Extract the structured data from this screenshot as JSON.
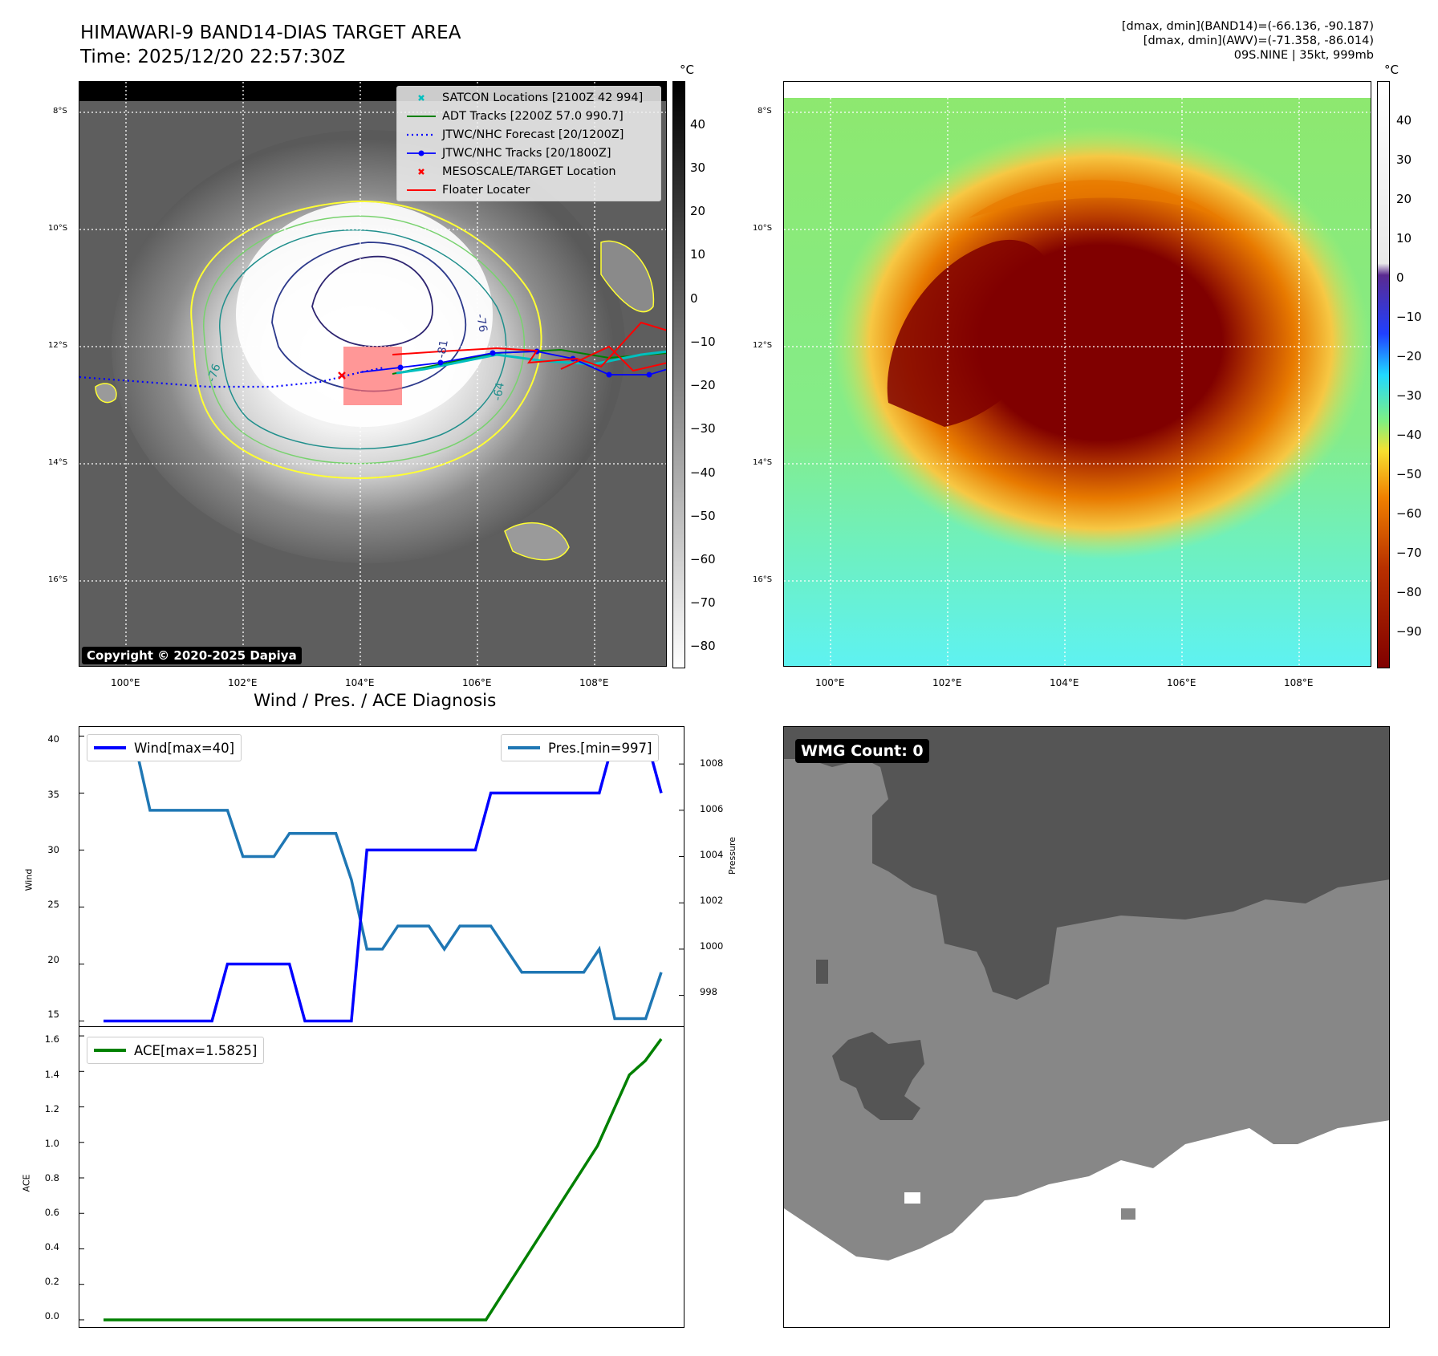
{
  "header": {
    "title_line1": "HIMAWARI-9 BAND14-DIAS TARGET AREA",
    "title_line2": "Time: 2025/12/20 22:57:30Z",
    "right_line1": "[dmax, dmin](BAND14)=(-66.136, -90.187)",
    "right_line2": "[dmax, dmin](AWV)=(-71.358, -86.014)",
    "right_line3": "09S.NINE | 35kt, 999mb"
  },
  "map": {
    "lat_labels": [
      "8°S",
      "10°S",
      "12°S",
      "14°S",
      "16°S"
    ],
    "lon_labels": [
      "100°E",
      "102°E",
      "104°E",
      "106°E",
      "108°E"
    ],
    "copyright": "Copyright © 2020-2025 Dapiya",
    "contour_labels": [
      "-76",
      "-76",
      "-81",
      "-64"
    ]
  },
  "legend": {
    "items": [
      {
        "label": "SATCON Locations [2100Z 42 994]",
        "color": "#00bfbf",
        "marker": "x"
      },
      {
        "label": "ADT Tracks [2200Z 57.0 990.7]",
        "color": "#008000",
        "marker": "line"
      },
      {
        "label": "JTWC/NHC Forecast [20/1200Z]",
        "color": "#0000ff",
        "marker": "dotted"
      },
      {
        "label": "JTWC/NHC Tracks [20/1800Z]",
        "color": "#0000ff",
        "marker": "line-dot"
      },
      {
        "label": "MESOSCALE/TARGET Location",
        "color": "#ff0000",
        "marker": "x"
      },
      {
        "label": "Floater Locater",
        "color": "#ff0000",
        "marker": "line"
      }
    ]
  },
  "colorbar_left": {
    "unit": "°C",
    "ticks": [
      "40",
      "30",
      "20",
      "10",
      "0",
      "−10",
      "−20",
      "−30",
      "−40",
      "−50",
      "−60",
      "−70",
      "−80"
    ]
  },
  "colorbar_right": {
    "unit": "°C",
    "ticks": [
      "40",
      "30",
      "20",
      "10",
      "0",
      "−10",
      "−20",
      "−30",
      "−40",
      "−50",
      "−60",
      "−70",
      "−80",
      "−90"
    ]
  },
  "diagnosis": {
    "title": "Wind / Pres. / ACE Diagnosis",
    "wind_legend": "Wind[max=40]",
    "pres_legend": "Pres.[min=997]",
    "ace_legend": "ACE[max=1.5825]",
    "wind_axis_label": "Wind",
    "pres_axis_label": "Pressure",
    "ace_axis_label": "ACE",
    "wind_ticks": [
      "40",
      "35",
      "30",
      "25",
      "20",
      "15"
    ],
    "pres_ticks": [
      "1008",
      "1006",
      "1004",
      "1002",
      "1000",
      "998"
    ],
    "ace_ticks": [
      "1.6",
      "1.4",
      "1.2",
      "1.0",
      "0.8",
      "0.6",
      "0.4",
      "0.2",
      "0.0"
    ]
  },
  "wmg": {
    "label": "WMG Count: 0"
  },
  "chart_data": [
    {
      "type": "line",
      "title": "Wind / Pres. / ACE Diagnosis",
      "series": [
        {
          "name": "Wind[max=40]",
          "axis": "left",
          "color": "#0000ff",
          "values": [
            15,
            15,
            15,
            15,
            15,
            15,
            15,
            15,
            20,
            20,
            20,
            20,
            20,
            15,
            15,
            15,
            15,
            30,
            30,
            30,
            30,
            30,
            30,
            30,
            30,
            35,
            35,
            35,
            35,
            35,
            35,
            35,
            35,
            40,
            40,
            40,
            35
          ]
        },
        {
          "name": "Pres.[min=997]",
          "axis": "right",
          "color": "#1f77b4",
          "values": [
            1009,
            1009,
            1009,
            1006,
            1006,
            1006,
            1006,
            1006,
            1006,
            1004,
            1004,
            1004,
            1005,
            1005,
            1005,
            1005,
            1003,
            1000,
            1000,
            1001,
            1001,
            1001,
            1000,
            1001,
            1001,
            1001,
            1000,
            999,
            999,
            999,
            999,
            999,
            1000,
            997,
            997,
            997,
            999
          ]
        }
      ],
      "ylim_left": [
        14.4,
        40.8
      ],
      "ylim_right": [
        996.6,
        1009.6
      ]
    },
    {
      "type": "line",
      "series": [
        {
          "name": "ACE[max=1.5825]",
          "color": "#008000",
          "values": [
            0,
            0,
            0,
            0,
            0,
            0,
            0,
            0,
            0,
            0,
            0,
            0,
            0,
            0,
            0,
            0,
            0,
            0,
            0,
            0,
            0,
            0,
            0,
            0,
            0,
            0.14,
            0.28,
            0.42,
            0.56,
            0.7,
            0.84,
            0.98,
            1.18,
            1.38,
            1.46,
            1.5825
          ]
        }
      ],
      "ylim": [
        -0.05,
        1.65
      ]
    }
  ]
}
